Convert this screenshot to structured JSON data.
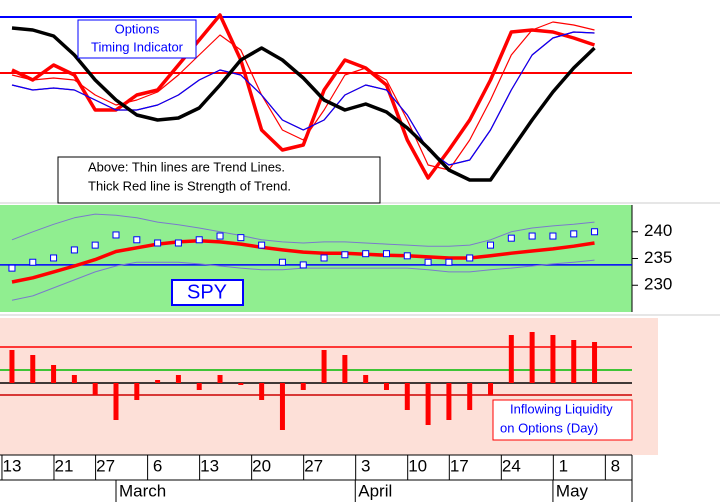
{
  "chart_data": [
    {
      "type": "line",
      "annotation": [
        "Options",
        "Timing Indicator"
      ],
      "note": [
        "Above:  Thin lines are Trend Lines.",
        "Thick Red line is Strength of Trend."
      ],
      "ylim": [
        0,
        100
      ],
      "hlines": [
        {
          "value": 91.5,
          "color": "#0000ff"
        },
        {
          "value": 63.5,
          "color": "#ff0000"
        }
      ],
      "series": [
        {
          "color": "#ff0000",
          "width": 1.2,
          "values": [
            57.5,
            55,
            56,
            55,
            50,
            45,
            45,
            47.5,
            52.5,
            60,
            65,
            62.5,
            52.5,
            40,
            35,
            40,
            52.5,
            57.5,
            55,
            42.5,
            25,
            17.5,
            20,
            35,
            55,
            72.5,
            81,
            84,
            83.5
          ]
        },
        {
          "color": "#ff0000",
          "width": 1.2,
          "values": [
            62.5,
            60,
            61,
            60,
            52.5,
            47.5,
            50,
            54,
            62.5,
            72.5,
            82.5,
            75,
            52.5,
            35,
            30,
            45,
            62.5,
            66,
            60,
            40,
            17.5,
            15,
            30,
            50,
            72.5,
            85,
            89,
            87.5,
            85
          ]
        },
        {
          "color": "#ff0000",
          "width": 3.5,
          "values": [
            65,
            60,
            67.5,
            62.5,
            45,
            45,
            52.5,
            55,
            67.5,
            80,
            92.5,
            70,
            35,
            25,
            27.5,
            55,
            70,
            66,
            57.5,
            30,
            11,
            25,
            40,
            60,
            84,
            85,
            84,
            81,
            77.5
          ]
        },
        {
          "color": "#0000ff",
          "width": 1.2,
          "values": [
            57.5,
            55,
            56,
            55,
            50,
            45,
            45,
            47.5,
            52.5,
            60,
            65,
            62.5,
            52.5,
            40,
            35,
            40,
            52.5,
            57.5,
            55,
            42.5,
            25,
            17.5,
            20,
            35,
            55,
            72.5,
            81,
            84,
            83.5
          ]
        },
        {
          "color": "#000000",
          "width": 3.5,
          "values": [
            86,
            85,
            82,
            72.5,
            60,
            50,
            42.5,
            40,
            41,
            46,
            57.5,
            70,
            76,
            70,
            61,
            50,
            45,
            48,
            44,
            36,
            26,
            15,
            10,
            10,
            25,
            40,
            54,
            66,
            76
          ]
        }
      ]
    },
    {
      "type": "line",
      "annotation": "SPY",
      "ylim": [
        225,
        245
      ],
      "yticks": [
        230,
        235,
        240
      ],
      "hlines": [
        {
          "value": 233.8,
          "color": "#0000ff"
        }
      ],
      "series": [
        {
          "color": "#7a7acc",
          "width": 1,
          "values": [
            238.5,
            240.0,
            241.4,
            242.6,
            243.3,
            243.1,
            242.6,
            241.8,
            241.3,
            240.7,
            240.0,
            239.3,
            238.5,
            238.1,
            237.9,
            238.1,
            238.1,
            237.9,
            237.7,
            237.5,
            237.3,
            237.3,
            237.5,
            238.5,
            240.0,
            240.7,
            241.1,
            241.4,
            241.8
          ]
        },
        {
          "color": "#7a7acc",
          "width": 1,
          "values": [
            227.2,
            228.0,
            229.5,
            231.0,
            232.5,
            233.6,
            234.3,
            234.3,
            234.3,
            234.0,
            233.6,
            233.2,
            232.9,
            232.9,
            233.2,
            233.2,
            233.2,
            233.2,
            233.2,
            233.2,
            232.9,
            232.5,
            232.5,
            232.9,
            233.2,
            233.6,
            234.0,
            234.3,
            234.7
          ]
        },
        {
          "color": "#ff0000",
          "width": 3.5,
          "values": [
            230.6,
            231.4,
            232.5,
            233.6,
            234.8,
            236.3,
            237.0,
            237.7,
            238.1,
            238.3,
            238.1,
            237.7,
            237.1,
            236.6,
            236.2,
            236.0,
            236.0,
            235.8,
            235.6,
            235.5,
            235.3,
            235.1,
            235.1,
            235.5,
            236.0,
            236.4,
            236.8,
            237.3,
            237.9
          ]
        },
        {
          "color": "#0000ff",
          "markers": true,
          "values": [
            233.2,
            234.3,
            235.1,
            236.6,
            237.5,
            239.4,
            238.5,
            237.9,
            237.9,
            238.5,
            239.2,
            238.9,
            237.5,
            234.3,
            233.8,
            235.1,
            235.7,
            235.9,
            235.9,
            235.5,
            234.3,
            234.3,
            235.1,
            237.5,
            238.8,
            239.2,
            239.2,
            239.6,
            240.0
          ]
        }
      ]
    },
    {
      "type": "bar",
      "annotation": [
        "Inflowing Liquidity",
        "on Options (Day)"
      ],
      "ylim": [
        -72,
        65
      ],
      "hlines": [
        {
          "value": 36,
          "color": "#ff0000"
        },
        {
          "value": 13,
          "color": "#00bb00"
        },
        {
          "value": 0,
          "color": "#000000"
        },
        {
          "value": -12,
          "color": "#cc0000"
        }
      ],
      "color": "#ff0000",
      "values": [
        33,
        28,
        18,
        8,
        -12,
        -37,
        -17,
        3,
        8,
        -7,
        8,
        -2,
        -17,
        -47,
        -7,
        33,
        28,
        8,
        -7,
        -27,
        -42,
        -37,
        -27,
        -12,
        48,
        51,
        48,
        43,
        41
      ],
      "x": [
        0,
        2,
        4,
        6,
        8,
        10,
        12,
        14,
        16,
        18,
        20,
        22,
        24,
        26,
        28,
        30,
        32,
        34,
        36,
        38,
        40,
        42,
        44,
        46,
        48,
        50,
        52,
        54,
        56
      ],
      "xlim": [
        -1.15,
        59.6
      ],
      "xticks": [
        {
          "value": 0,
          "label": "13"
        },
        {
          "value": 5,
          "label": "21"
        },
        {
          "value": 9,
          "label": "27"
        },
        {
          "value": 14,
          "label": "6"
        },
        {
          "value": 19,
          "label": "13"
        },
        {
          "value": 24,
          "label": "20"
        },
        {
          "value": 29,
          "label": "27"
        },
        {
          "value": 34,
          "label": "3"
        },
        {
          "value": 39,
          "label": "10"
        },
        {
          "value": 43,
          "label": "17"
        },
        {
          "value": 48,
          "label": "24"
        },
        {
          "value": 53,
          "label": "1"
        },
        {
          "value": 58,
          "label": "8"
        }
      ],
      "month_ticks": [
        {
          "value": 10,
          "label": "March"
        },
        {
          "value": 33,
          "label": "April"
        },
        {
          "value": 52,
          "label": "May"
        }
      ]
    }
  ]
}
